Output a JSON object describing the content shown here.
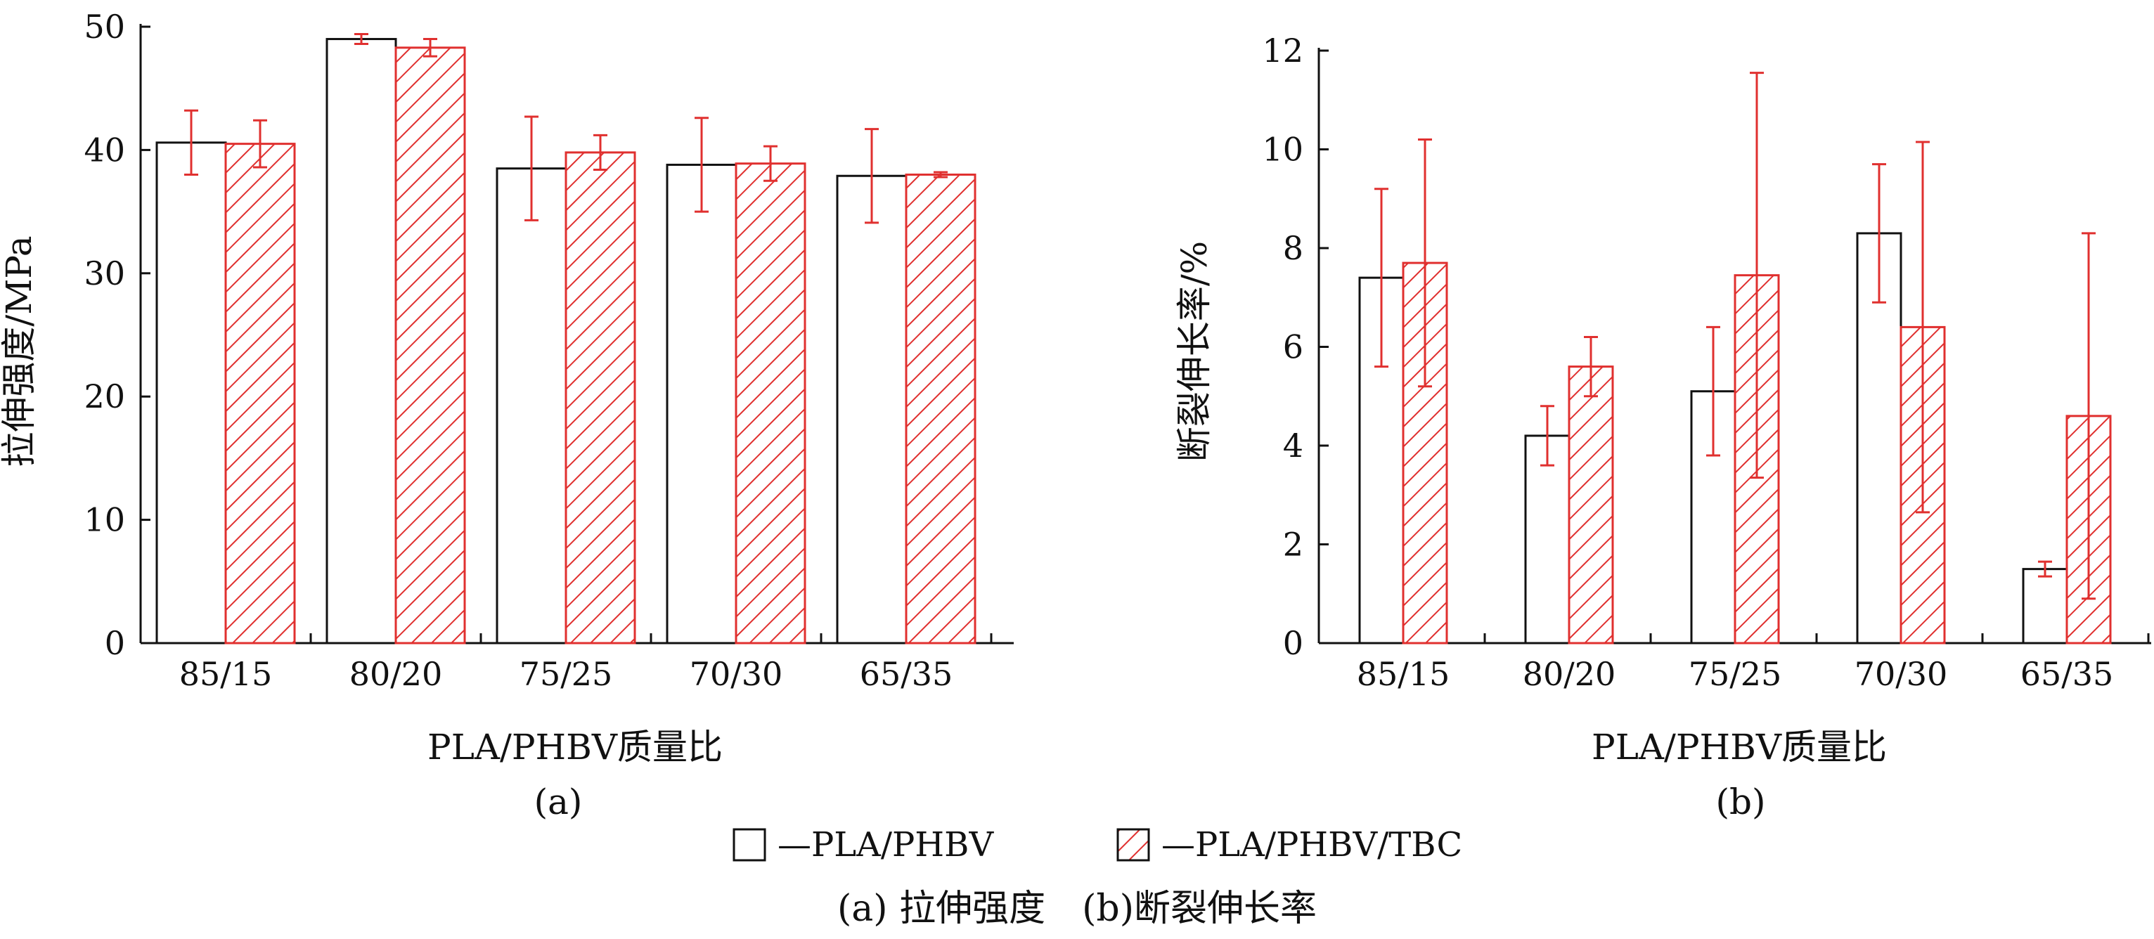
{
  "legend": {
    "items": [
      {
        "label": "—PLA/PHBV",
        "style": "open"
      },
      {
        "label": "—PLA/PHBV/TBC",
        "style": "hatched"
      }
    ]
  },
  "caption": "(a) 拉伸强度　(b)断裂伸长率",
  "colors": {
    "hatch": "#e0302f",
    "error_bar": "#e0302f",
    "outline": "#111111"
  },
  "chart_data": [
    {
      "type": "bar",
      "panel_label": "(a)",
      "xlabel": "PLA/PHBV质量比",
      "ylabel": "拉伸强度/MPa",
      "ylim": [
        0,
        50
      ],
      "yticks": [
        0,
        10,
        20,
        30,
        40,
        50
      ],
      "categories": [
        "85/15",
        "80/20",
        "75/25",
        "70/30",
        "65/35"
      ],
      "series": [
        {
          "name": "PLA/PHBV",
          "values": [
            40.6,
            49.0,
            38.5,
            38.8,
            37.9
          ],
          "error": [
            2.6,
            0.4,
            4.2,
            3.8,
            3.8
          ]
        },
        {
          "name": "PLA/PHBV/TBC",
          "values": [
            40.5,
            48.3,
            39.8,
            38.9,
            38.0
          ],
          "error": [
            1.9,
            0.7,
            1.4,
            1.4,
            0.2
          ]
        }
      ]
    },
    {
      "type": "bar",
      "panel_label": "(b)",
      "xlabel": "PLA/PHBV质量比",
      "ylabel": "断裂伸长率/%",
      "ylim": [
        0,
        12
      ],
      "yticks": [
        0,
        2,
        4,
        6,
        8,
        10,
        12
      ],
      "categories": [
        "85/15",
        "80/20",
        "75/25",
        "70/30",
        "65/35"
      ],
      "series": [
        {
          "name": "PLA/PHBV",
          "values": [
            7.4,
            4.2,
            5.1,
            8.3,
            1.5
          ],
          "error": [
            1.8,
            0.6,
            1.3,
            1.4,
            0.15
          ]
        },
        {
          "name": "PLA/PHBV/TBC",
          "values": [
            7.7,
            5.6,
            7.45,
            6.4,
            4.6
          ],
          "error": [
            2.5,
            0.6,
            4.1,
            3.75,
            3.7
          ]
        }
      ]
    }
  ]
}
